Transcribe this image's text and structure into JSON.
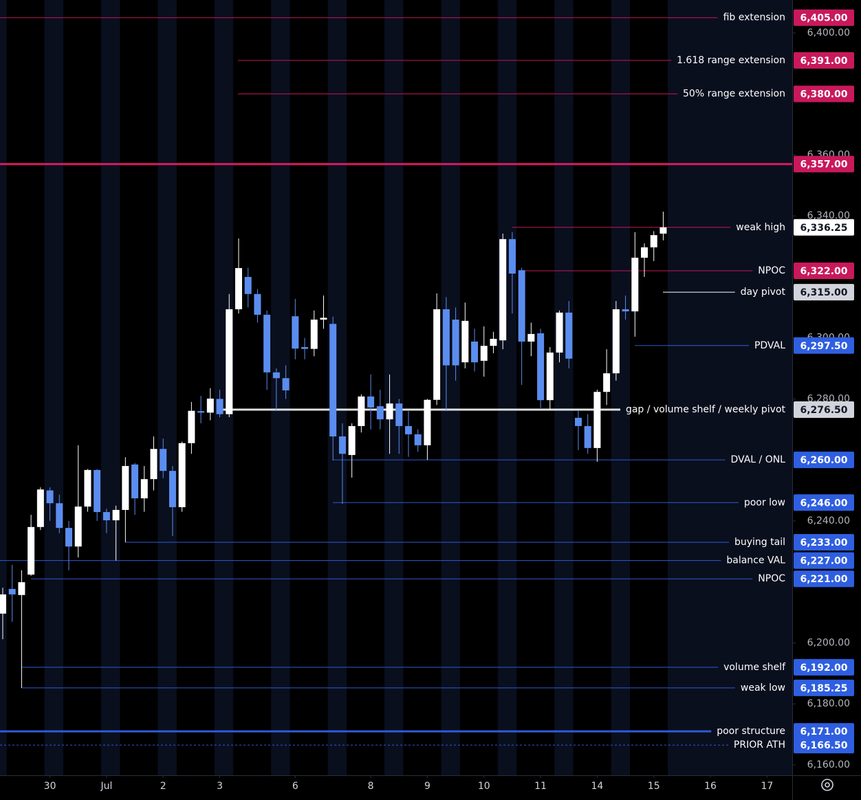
{
  "chart_data": {
    "type": "candlestick",
    "ylim": [
      6156.6,
      6410.8
    ],
    "xlim": [
      -0.29,
      83.67
    ],
    "up_color": "#ffffff",
    "down_color": "#5b8def",
    "yticks": [
      {
        "value": 6400,
        "label": "6,400.00"
      },
      {
        "value": 6360,
        "label": "6,360.00"
      },
      {
        "value": 6340,
        "label": "6,340.00"
      },
      {
        "value": 6300,
        "label": "6,300.00"
      },
      {
        "value": 6280,
        "label": "6,280.00"
      },
      {
        "value": 6240,
        "label": "6,240.00"
      },
      {
        "value": 6200,
        "label": "6,200.00"
      },
      {
        "value": 6180,
        "label": "6,180.00"
      },
      {
        "value": 6160,
        "label": "6,160.00"
      }
    ],
    "xticks": [
      {
        "value": 5,
        "label": "30"
      },
      {
        "value": 11,
        "label": "Jul"
      },
      {
        "value": 17,
        "label": "2"
      },
      {
        "value": 23,
        "label": "3"
      },
      {
        "value": 31,
        "label": "6"
      },
      {
        "value": 39,
        "label": "8"
      },
      {
        "value": 45,
        "label": "9"
      },
      {
        "value": 51,
        "label": "10"
      },
      {
        "value": 57,
        "label": "11"
      },
      {
        "value": 63,
        "label": "14"
      },
      {
        "value": 69,
        "label": "15"
      },
      {
        "value": 75,
        "label": "16"
      },
      {
        "value": 81,
        "label": "17"
      }
    ],
    "open": [
      6209.6,
      6217.7,
      6215.7,
      6222.4,
      6238,
      6250,
      6245.8,
      6237.7,
      6231.6,
      6244.7,
      6256.7,
      6242.9,
      6240.2,
      6243.6,
      6258.5,
      6247.4,
      6253.7,
      6263.6,
      6256.4,
      6244.5,
      6265.5,
      6276,
      6275.5,
      6280,
      6275,
      6309.4,
      6320,
      6314.4,
      6307.6,
      6288.7,
      6286.8,
      6307.1,
      6297,
      6296.4,
      6306,
      6304.6,
      6267.7,
      6261.6,
      6271.1,
      6280.8,
      6277.6,
      6273.3,
      6278.5,
      6271.1,
      6268.4,
      6264.8,
      6279.7,
      6309.4,
      6306,
      6292,
      6298.8,
      6292.5,
      6297.4,
      6299.2,
      6332.4,
      6322.2,
      6298.8,
      6301.5,
      6279.6,
      6295.2,
      6308.3,
      6273.8,
      6271.1,
      6263.9,
      6282.3,
      6288.4,
      6309.4,
      6308.7,
      6326.3,
      6329.7,
      6334.2
    ],
    "high": [
      6218.1,
      6225.6,
      6223.8,
      6242,
      6251,
      6251,
      6248.6,
      6240,
      6264.8,
      6257,
      6257,
      6244,
      6245,
      6260.9,
      6259,
      6258,
      6267.7,
      6267,
      6258,
      6266,
      6279,
      6281,
      6283.5,
      6283,
      6314.4,
      6332.6,
      6323,
      6316,
      6309,
      6290,
      6291,
      6312.8,
      6300,
      6309,
      6313.9,
      6307,
      6272,
      6272,
      6281.5,
      6288,
      6283,
      6288,
      6280,
      6276,
      6270,
      6280,
      6314.6,
      6313.4,
      6310,
      6311.6,
      6303,
      6303.8,
      6302,
      6334.2,
      6334.7,
      6323,
      6305,
      6303,
      6297,
      6309,
      6312.1,
      6276.3,
      6275,
      6283,
      6296.3,
      6312.1,
      6313.9,
      6334.7,
      6331,
      6335,
      6341.4
    ],
    "low": [
      6201.2,
      6206.9,
      6185.25,
      6222,
      6237,
      6240,
      6236,
      6223.8,
      6228,
      6243,
      6240,
      6236,
      6227,
      6233,
      6242,
      6243,
      6250,
      6254,
      6235,
      6243,
      6262,
      6272,
      6273,
      6274,
      6274,
      6308,
      6310,
      6305,
      6283,
      6276,
      6280,
      6293,
      6293,
      6294,
      6303,
      6259.8,
      6245.6,
      6254.2,
      6269,
      6270,
      6270,
      6262,
      6262,
      6261,
      6262.7,
      6260,
      6278,
      6276,
      6286,
      6290,
      6289,
      6287.3,
      6295,
      6296.3,
      6308,
      6284.6,
      6294,
      6277,
      6276.3,
      6292,
      6290,
      6263.2,
      6262,
      6259.4,
      6278,
      6286,
      6306,
      6300.4,
      6320,
      6325.2,
      6332
    ],
    "close": [
      6215.9,
      6215.9,
      6219.9,
      6238,
      6250.3,
      6245.8,
      6237.7,
      6231.6,
      6244.7,
      6256.7,
      6242.9,
      6240.2,
      6243.6,
      6258,
      6247.4,
      6253.7,
      6263.6,
      6256.4,
      6244.5,
      6265.5,
      6276.1,
      6275.5,
      6280.1,
      6275,
      6309.4,
      6322.9,
      6314.4,
      6307.6,
      6288.7,
      6286.8,
      6282.8,
      6296.5,
      6296.4,
      6306,
      6306.6,
      6267.7,
      6262,
      6271.1,
      6280.8,
      6277.2,
      6273.3,
      6278.5,
      6271.1,
      6268.4,
      6264.8,
      6279.7,
      6309.4,
      6291,
      6291,
      6305.6,
      6292,
      6297.4,
      6299.7,
      6332.4,
      6321.1,
      6298.8,
      6301.3,
      6279.6,
      6295.2,
      6308.3,
      6293.2,
      6271.1,
      6263.9,
      6282.3,
      6288.4,
      6309.4,
      6308.7,
      6326.3,
      6329.7,
      6333.7,
      6336.25
    ],
    "levels": [
      {
        "label": "fib extension",
        "value": 6405,
        "value_label": "6,405.00",
        "color": "#c2185b",
        "tag_color": "#c8195b",
        "line": "thin"
      },
      {
        "label": "1.618 range extension",
        "value": 6391,
        "value_label": "6,391.00",
        "color": "#c2185b",
        "tag_color": "#c8195b",
        "line": "thin"
      },
      {
        "label": "50% range extension",
        "value": 6380,
        "value_label": "6,380.00",
        "color": "#c2185b",
        "tag_color": "#c8195b",
        "line": "thin"
      },
      {
        "value": 6357,
        "value_label": "6,357.00",
        "color": "#d81b60",
        "tag_color": "#c8195b",
        "line": "thick"
      },
      {
        "label": "weak high",
        "value": 6336.25,
        "value_label": "6,336.25",
        "color": "#c2185b",
        "tag_color": "#ffffff",
        "line": "thin"
      },
      {
        "label": "NPOC",
        "value": 6322,
        "value_label": "6,322.00",
        "color": "#c2185b",
        "tag_color": "#c8195b",
        "line": "thin"
      },
      {
        "label": "day pivot",
        "value": 6315,
        "value_label": "6,315.00",
        "color": "#ffffff",
        "tag_color": "#d1d4dc",
        "line": "thin"
      },
      {
        "label": "PDVAL",
        "value": 6297.5,
        "value_label": "6,297.50",
        "color": "#2f5bd6",
        "tag_color": "#2f5fe0",
        "line": "thin"
      },
      {
        "label": "gap / volume shelf / weekly pivot",
        "value": 6276.5,
        "value_label": "6,276.50",
        "color": "#e0e0e0",
        "tag_color": "#d1d4dc",
        "line": "thick"
      },
      {
        "label": "DVAL / ONL",
        "value": 6260,
        "value_label": "6,260.00",
        "color": "#2f5bd6",
        "tag_color": "#2f5fe0",
        "line": "thin"
      },
      {
        "label": "poor low",
        "value": 6246,
        "value_label": "6,246.00",
        "color": "#2f5bd6",
        "tag_color": "#2f5fe0",
        "line": "thin"
      },
      {
        "label": "buying tail",
        "value": 6233,
        "value_label": "6,233.00",
        "color": "#2f5bd6",
        "tag_color": "#2f5fe0",
        "line": "thin"
      },
      {
        "label": "balance VAL",
        "value": 6227,
        "value_label": "6,227.00",
        "color": "#2f5bd6",
        "tag_color": "#2f5fe0",
        "line": "thin"
      },
      {
        "label": "NPOC",
        "value": 6221,
        "value_label": "6,221.00",
        "color": "#2f5bd6",
        "tag_color": "#2f5fe0",
        "line": "thin"
      },
      {
        "label": "volume shelf",
        "value": 6192,
        "value_label": "6,192.00",
        "color": "#2f5bd6",
        "tag_color": "#2f5fe0",
        "line": "thin"
      },
      {
        "label": "weak low",
        "value": 6185.25,
        "value_label": "6,185.25",
        "color": "#2f5bd6",
        "tag_color": "#2f5fe0",
        "line": "thin"
      },
      {
        "label": "poor structure",
        "value": 6171,
        "value_label": "6,171.00",
        "color": "#2f5bd6",
        "tag_color": "#2f5fe0",
        "line": "thick"
      },
      {
        "label": "PRIOR ATH",
        "value": 6166.5,
        "value_label": "6,166.50",
        "color": "#2f5bd6",
        "tag_color": "#2f5fe0",
        "line": "dashed"
      }
    ]
  }
}
